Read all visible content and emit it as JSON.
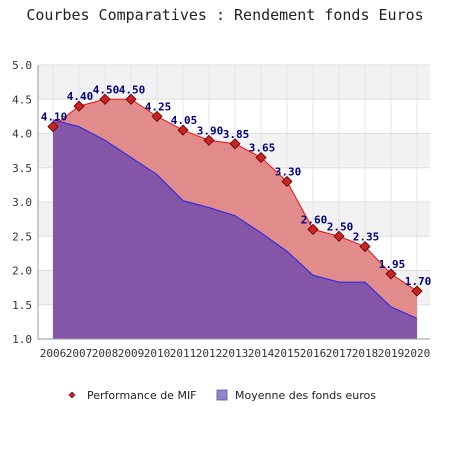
{
  "chart_data": {
    "type": "area",
    "title": "Courbes Comparatives : Rendement fonds Euros",
    "xlabel": "",
    "ylabel": "",
    "ylim": [
      1.0,
      5.0
    ],
    "yticks": [
      "1.0",
      "1.5",
      "2.0",
      "2.5",
      "3.0",
      "3.5",
      "4.0",
      "4.5",
      "5.0"
    ],
    "categories": [
      "2006",
      "2007",
      "2008",
      "2009",
      "2010",
      "2011",
      "2012",
      "2013",
      "2014",
      "2015",
      "2016",
      "2017",
      "2018",
      "2019",
      "2020"
    ],
    "grid": "horizontal bands",
    "legend_position": "bottom",
    "series": [
      {
        "name": "Performance de MIF",
        "values": [
          4.1,
          4.4,
          4.5,
          4.5,
          4.25,
          4.05,
          3.9,
          3.85,
          3.65,
          3.3,
          2.6,
          2.5,
          2.35,
          1.95,
          1.7
        ],
        "labels": [
          "4.10",
          "4.40",
          "4.50",
          "4.50",
          "4.25",
          "4.05",
          "3.90",
          "3.85",
          "3.65",
          "3.30",
          "2.60",
          "2.50",
          "2.35",
          "1.95",
          "1.70"
        ],
        "line_color": "#ee1111",
        "fill_color": "#e08080",
        "marker_color": "#cc2222"
      },
      {
        "name": "Moyenne des fonds euros",
        "values": [
          4.2,
          4.1,
          3.9,
          3.65,
          3.4,
          3.02,
          2.92,
          2.8,
          2.55,
          2.28,
          1.93,
          1.83,
          1.83,
          1.47,
          1.3
        ],
        "line_color": "#2222ee",
        "fill_color": "#8555a8"
      }
    ]
  }
}
